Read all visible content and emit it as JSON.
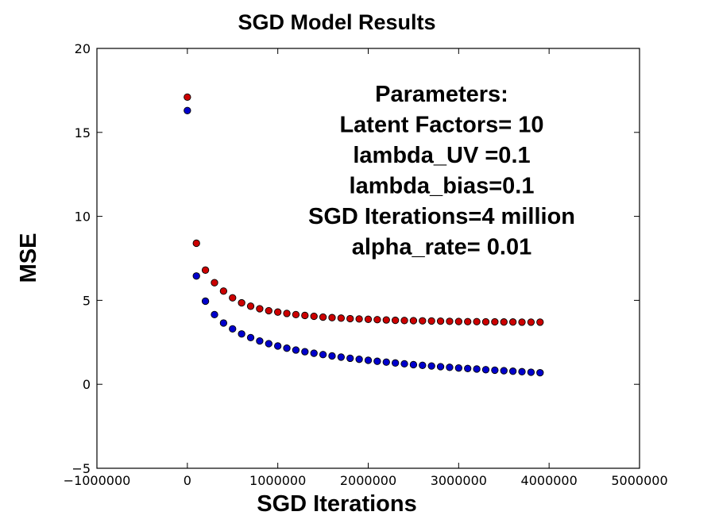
{
  "chart_data": {
    "type": "scatter",
    "title": "SGD Model Results",
    "xlabel": "SGD Iterations",
    "ylabel": "MSE",
    "xlim": [
      -1000000,
      5000000
    ],
    "ylim": [
      -5,
      20
    ],
    "xticks": [
      -1000000,
      0,
      1000000,
      2000000,
      3000000,
      4000000,
      5000000
    ],
    "xtick_labels": [
      "−1000000",
      "0",
      "1000000",
      "2000000",
      "3000000",
      "4000000",
      "5000000"
    ],
    "yticks": [
      -5,
      0,
      5,
      10,
      15,
      20
    ],
    "ytick_labels": [
      "−5",
      "0",
      "5",
      "10",
      "15",
      "20"
    ],
    "grid": false,
    "annotation": [
      "Parameters:",
      "Latent Factors= 10",
      "lambda_UV =0.1",
      "lambda_bias=0.1",
      "SGD Iterations=4 million",
      "alpha_rate= 0.01"
    ],
    "series": [
      {
        "color": "#cc0000",
        "x": [
          0,
          100000,
          200000,
          300000,
          400000,
          500000,
          600000,
          700000,
          800000,
          900000,
          1000000,
          1100000,
          1200000,
          1300000,
          1400000,
          1500000,
          1600000,
          1700000,
          1800000,
          1900000,
          2000000,
          2100000,
          2200000,
          2300000,
          2400000,
          2500000,
          2600000,
          2700000,
          2800000,
          2900000,
          3000000,
          3100000,
          3200000,
          3300000,
          3400000,
          3500000,
          3600000,
          3700000,
          3800000,
          3900000
        ],
        "y": [
          17.1,
          8.4,
          6.8,
          6.05,
          5.55,
          5.15,
          4.85,
          4.65,
          4.5,
          4.38,
          4.3,
          4.22,
          4.15,
          4.1,
          4.05,
          4.0,
          3.97,
          3.94,
          3.91,
          3.89,
          3.87,
          3.85,
          3.83,
          3.81,
          3.8,
          3.79,
          3.78,
          3.77,
          3.76,
          3.75,
          3.74,
          3.73,
          3.73,
          3.72,
          3.72,
          3.71,
          3.71,
          3.7,
          3.7,
          3.7
        ]
      },
      {
        "color": "#0000cc",
        "x": [
          0,
          100000,
          200000,
          300000,
          400000,
          500000,
          600000,
          700000,
          800000,
          900000,
          1000000,
          1100000,
          1200000,
          1300000,
          1400000,
          1500000,
          1600000,
          1700000,
          1800000,
          1900000,
          2000000,
          2100000,
          2200000,
          2300000,
          2400000,
          2500000,
          2600000,
          2700000,
          2800000,
          2900000,
          3000000,
          3100000,
          3200000,
          3300000,
          3400000,
          3500000,
          3600000,
          3700000,
          3800000,
          3900000
        ],
        "y": [
          16.3,
          6.45,
          4.95,
          4.15,
          3.65,
          3.3,
          3.0,
          2.78,
          2.58,
          2.42,
          2.28,
          2.15,
          2.04,
          1.94,
          1.85,
          1.77,
          1.69,
          1.62,
          1.55,
          1.49,
          1.43,
          1.37,
          1.32,
          1.27,
          1.22,
          1.17,
          1.13,
          1.09,
          1.05,
          1.01,
          0.97,
          0.94,
          0.91,
          0.87,
          0.84,
          0.81,
          0.78,
          0.75,
          0.72,
          0.69
        ]
      }
    ]
  }
}
